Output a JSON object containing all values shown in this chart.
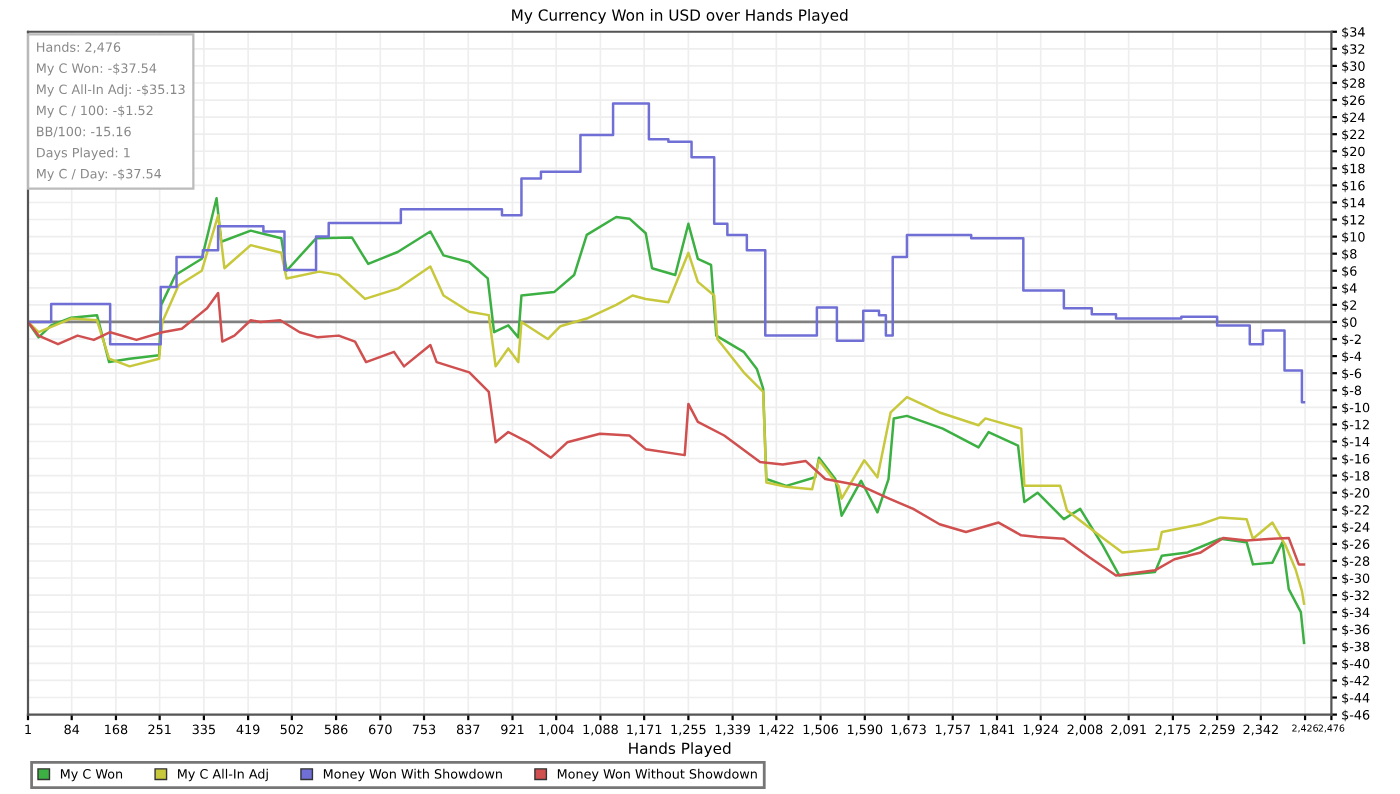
{
  "chart_data": {
    "type": "line",
    "title": "My Currency Won in USD over Hands Played",
    "xlabel": "Hands Played",
    "xlim": [
      1,
      2476
    ],
    "xticks": [
      {
        "value": 1,
        "label": "1"
      },
      {
        "value": 84,
        "label": "84"
      },
      {
        "value": 168,
        "label": "168"
      },
      {
        "value": 251,
        "label": "251"
      },
      {
        "value": 335,
        "label": "335"
      },
      {
        "value": 419,
        "label": "419"
      },
      {
        "value": 502,
        "label": "502"
      },
      {
        "value": 586,
        "label": "586"
      },
      {
        "value": 670,
        "label": "670"
      },
      {
        "value": 753,
        "label": "753"
      },
      {
        "value": 837,
        "label": "837"
      },
      {
        "value": 921,
        "label": "921"
      },
      {
        "value": 1004,
        "label": "1,004"
      },
      {
        "value": 1088,
        "label": "1,088"
      },
      {
        "value": 1171,
        "label": "1,171"
      },
      {
        "value": 1255,
        "label": "1,255"
      },
      {
        "value": 1339,
        "label": "1,339"
      },
      {
        "value": 1422,
        "label": "1,422"
      },
      {
        "value": 1506,
        "label": "1,506"
      },
      {
        "value": 1590,
        "label": "1,590"
      },
      {
        "value": 1673,
        "label": "1,673"
      },
      {
        "value": 1757,
        "label": "1,757"
      },
      {
        "value": 1841,
        "label": "1,841"
      },
      {
        "value": 1924,
        "label": "1,924"
      },
      {
        "value": 2008,
        "label": "2,008"
      },
      {
        "value": 2091,
        "label": "2,091"
      },
      {
        "value": 2175,
        "label": "2,175"
      },
      {
        "value": 2259,
        "label": "2,259"
      },
      {
        "value": 2342,
        "label": "2,342"
      },
      {
        "value": 2426,
        "label": "2,426"
      },
      {
        "value": 2476,
        "label": "2,476"
      }
    ],
    "ylim": [
      -46,
      34
    ],
    "yticks": [
      {
        "value": 34,
        "label": "$34"
      },
      {
        "value": 32,
        "label": "$32"
      },
      {
        "value": 30,
        "label": "$30"
      },
      {
        "value": 28,
        "label": "$28"
      },
      {
        "value": 26,
        "label": "$26"
      },
      {
        "value": 24,
        "label": "$24"
      },
      {
        "value": 22,
        "label": "$22"
      },
      {
        "value": 20,
        "label": "$20"
      },
      {
        "value": 18,
        "label": "$18"
      },
      {
        "value": 16,
        "label": "$16"
      },
      {
        "value": 14,
        "label": "$14"
      },
      {
        "value": 12,
        "label": "$12"
      },
      {
        "value": 10,
        "label": "$10"
      },
      {
        "value": 8,
        "label": "$8"
      },
      {
        "value": 6,
        "label": "$6"
      },
      {
        "value": 4,
        "label": "$4"
      },
      {
        "value": 2,
        "label": "$2"
      },
      {
        "value": 0,
        "label": "$0"
      },
      {
        "value": -2,
        "label": "$-2"
      },
      {
        "value": -4,
        "label": "$-4"
      },
      {
        "value": -6,
        "label": "$-6"
      },
      {
        "value": -8,
        "label": "$-8"
      },
      {
        "value": -10,
        "label": "$-10"
      },
      {
        "value": -12,
        "label": "$-12"
      },
      {
        "value": -14,
        "label": "$-14"
      },
      {
        "value": -16,
        "label": "$-16"
      },
      {
        "value": -18,
        "label": "$-18"
      },
      {
        "value": -20,
        "label": "$-20"
      },
      {
        "value": -22,
        "label": "$-22"
      },
      {
        "value": -24,
        "label": "$-24"
      },
      {
        "value": -26,
        "label": "$-26"
      },
      {
        "value": -28,
        "label": "$-28"
      },
      {
        "value": -30,
        "label": "$-30"
      },
      {
        "value": -32,
        "label": "$-32"
      },
      {
        "value": -34,
        "label": "$-34"
      },
      {
        "value": -36,
        "label": "$-36"
      },
      {
        "value": -38,
        "label": "$-38"
      },
      {
        "value": -40,
        "label": "$-40"
      },
      {
        "value": -42,
        "label": "$-42"
      },
      {
        "value": -44,
        "label": "$-44"
      },
      {
        "value": -46,
        "label": "$-46"
      }
    ],
    "grid": true,
    "legend": "bottom",
    "ref_lines": [
      {
        "axis": "y",
        "value": 0,
        "color": "#808080"
      }
    ],
    "annotations": [
      "Hands: 2,476",
      "My C Won: -$37.54",
      "My C All-In Adj: -$35.13",
      "My C / 100: -$1.52",
      "BB/100: -15.16",
      "Days Played: 1",
      "My C / Day: -$37.54"
    ],
    "series": [
      {
        "name": "My C Won",
        "color": "#3cb043",
        "x": [
          1,
          21,
          45,
          83,
          132,
          155,
          194,
          250,
          254,
          281,
          331,
          359,
          368,
          424,
          482,
          492,
          548,
          616,
          647,
          703,
          765,
          790,
          839,
          874,
          886,
          913,
          932,
          938,
          1000,
          1038,
          1062,
          1118,
          1143,
          1174,
          1186,
          1230,
          1255,
          1273,
          1298,
          1308,
          1360,
          1385,
          1397,
          1403,
          1441,
          1496,
          1503,
          1534,
          1546,
          1583,
          1614,
          1635,
          1645,
          1670,
          1738,
          1806,
          1825,
          1881,
          1893,
          1918,
          1968,
          1999,
          2042,
          2073,
          2141,
          2154,
          2203,
          2265,
          2315,
          2327,
          2364,
          2383,
          2395,
          2418,
          2424
        ],
        "values": [
          0,
          -1.8,
          -0.4,
          0.5,
          0.8,
          -4.7,
          -4.3,
          -3.9,
          2.0,
          5.5,
          7.4,
          14.5,
          9.4,
          10.7,
          9.8,
          6.0,
          9.8,
          9.9,
          6.8,
          8.2,
          10.6,
          7.8,
          7.0,
          5.1,
          -1.2,
          -0.4,
          -1.8,
          3.1,
          3.5,
          5.5,
          10.2,
          12.3,
          12.1,
          10.4,
          6.3,
          5.5,
          11.5,
          7.4,
          6.7,
          -1.6,
          -3.5,
          -5.5,
          -7.8,
          -18.4,
          -19.2,
          -18.2,
          -15.9,
          -18.4,
          -22.7,
          -18.6,
          -22.3,
          -18.4,
          -11.3,
          -11.0,
          -12.5,
          -14.7,
          -12.9,
          -14.5,
          -21.1,
          -20.0,
          -23.1,
          -21.9,
          -26.2,
          -29.7,
          -29.3,
          -27.4,
          -27.0,
          -25.4,
          -25.8,
          -28.4,
          -28.2,
          -25.8,
          -31.3,
          -34.0,
          -37.6
        ]
      },
      {
        "name": "My C All-In Adj",
        "color": "#c8c83c",
        "x": [
          1,
          21,
          83,
          132,
          155,
          194,
          250,
          256,
          287,
          331,
          362,
          374,
          424,
          482,
          492,
          554,
          591,
          641,
          703,
          765,
          790,
          839,
          876,
          889,
          913,
          932,
          938,
          988,
          1012,
          1062,
          1118,
          1149,
          1174,
          1217,
          1255,
          1273,
          1304,
          1310,
          1360,
          1397,
          1403,
          1441,
          1490,
          1503,
          1540,
          1546,
          1589,
          1614,
          1639,
          1670,
          1732,
          1806,
          1819,
          1887,
          1893,
          1961,
          1974,
          2042,
          2079,
          2147,
          2154,
          2228,
          2265,
          2315,
          2327,
          2364,
          2389,
          2408,
          2420,
          2424
        ],
        "values": [
          0,
          -1.2,
          0.4,
          0.2,
          -4.3,
          -5.2,
          -4.3,
          0,
          4.3,
          6.0,
          12.5,
          6.3,
          9.0,
          8.1,
          5.1,
          5.9,
          5.5,
          2.7,
          3.9,
          6.5,
          3.1,
          1.2,
          0.8,
          -5.2,
          -3.1,
          -4.7,
          0,
          -2.0,
          -0.5,
          0.4,
          2.0,
          3.1,
          2.7,
          2.3,
          8.1,
          4.7,
          3.1,
          -2.0,
          -5.9,
          -8.2,
          -18.8,
          -19.3,
          -19.6,
          -16.2,
          -19.2,
          -20.7,
          -16.2,
          -18.2,
          -10.6,
          -8.8,
          -10.6,
          -12.1,
          -11.3,
          -12.5,
          -19.2,
          -19.2,
          -22.1,
          -25.3,
          -27.0,
          -26.6,
          -24.6,
          -23.7,
          -22.9,
          -23.1,
          -25.4,
          -23.5,
          -26.2,
          -29.0,
          -31.5,
          -33.0
        ]
      },
      {
        "name": "Money Won With Showdown",
        "type": "step",
        "color": "#6f6fd6",
        "x": [
          1,
          45,
          157,
          253,
          283,
          333,
          362,
          448,
          488,
          548,
          572,
          709,
          901,
          938,
          975,
          1050,
          1112,
          1180,
          1217,
          1261,
          1304,
          1329,
          1366,
          1401,
          1499,
          1537,
          1587,
          1617,
          1630,
          1643,
          1670,
          1792,
          1891,
          1968,
          2021,
          2067,
          2191,
          2259,
          2321,
          2346,
          2387,
          2420,
          2424
        ],
        "values": [
          0,
          2.1,
          -2.6,
          4.1,
          7.6,
          8.4,
          11.2,
          10.6,
          6.1,
          10.0,
          11.6,
          13.2,
          12.5,
          16.8,
          17.6,
          21.9,
          25.6,
          21.4,
          21.1,
          19.3,
          11.5,
          10.2,
          8.4,
          -1.6,
          1.7,
          -2.2,
          1.3,
          0.8,
          -1.6,
          7.6,
          10.2,
          9.8,
          3.7,
          1.6,
          0.9,
          0.4,
          0.6,
          -0.4,
          -2.6,
          -1.0,
          -5.7,
          -9.4,
          -9.4
        ]
      },
      {
        "name": "Money Won Without Showdown",
        "color": "#d05050",
        "x": [
          1,
          21,
          58,
          95,
          126,
          157,
          207,
          256,
          293,
          325,
          341,
          362,
          370,
          393,
          424,
          442,
          480,
          517,
          551,
          591,
          622,
          643,
          696,
          715,
          765,
          777,
          839,
          876,
          889,
          913,
          951,
          994,
          1025,
          1087,
          1143,
          1174,
          1248,
          1255,
          1273,
          1323,
          1391,
          1434,
          1478,
          1515,
          1583,
          1633,
          1682,
          1732,
          1782,
          1844,
          1887,
          1918,
          1968,
          2017,
          2067,
          2141,
          2178,
          2228,
          2271,
          2315,
          2364,
          2395,
          2414,
          2424
        ],
        "values": [
          0,
          -1.6,
          -2.6,
          -1.6,
          -2.1,
          -1.2,
          -2.1,
          -1.2,
          -0.8,
          0.8,
          1.6,
          3.4,
          -2.3,
          -1.6,
          0.2,
          0,
          0.2,
          -1.2,
          -1.8,
          -1.6,
          -2.3,
          -4.7,
          -3.5,
          -5.2,
          -2.7,
          -4.7,
          -5.9,
          -8.2,
          -14.1,
          -12.9,
          -14.1,
          -15.9,
          -14.1,
          -13.1,
          -13.3,
          -14.9,
          -15.6,
          -9.6,
          -11.7,
          -13.3,
          -16.4,
          -16.7,
          -16.3,
          -18.4,
          -19.2,
          -20.6,
          -21.9,
          -23.7,
          -24.6,
          -23.5,
          -25.0,
          -25.2,
          -25.4,
          -27.6,
          -29.7,
          -29.1,
          -27.8,
          -27.0,
          -25.3,
          -25.6,
          -25.4,
          -25.3,
          -28.4,
          -28.4
        ]
      }
    ]
  }
}
